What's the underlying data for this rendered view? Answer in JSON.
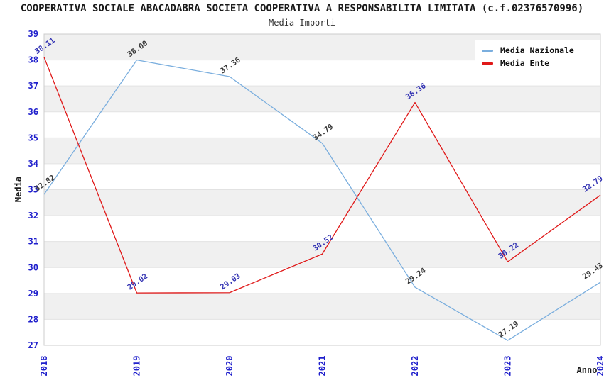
{
  "header": {
    "title": "COOPERATIVA SOCIALE ABACADABRA SOCIETA COOPERATIVA A RESPONSABILITA LIMITATA (c.f.02376570996)",
    "subtitle": "Media Importi"
  },
  "axes": {
    "y_label": "Media",
    "x_label": "Anno",
    "x_ticks": [
      "2018",
      "2019",
      "2020",
      "2021",
      "2022",
      "2023",
      "2024"
    ],
    "y_ticks": [
      27,
      28,
      29,
      30,
      31,
      32,
      33,
      34,
      35,
      36,
      37,
      38,
      39
    ],
    "tick_color": "#2020cc"
  },
  "legend": {
    "items": [
      {
        "label": "Media Nazionale",
        "color": "#7aaede"
      },
      {
        "label": "Media Ente",
        "color": "#e01818"
      }
    ]
  },
  "colors": {
    "band_fill": "#f0f0f0",
    "grid_line": "#e2e2e2",
    "plot_border": "#cccccc",
    "nazionale_line": "#7aaede",
    "ente_line": "#e01818",
    "nazionale_value_label": "#3a3a3a",
    "ente_value_label": "#3333b3"
  },
  "chart_data": {
    "type": "line",
    "title": "Media Importi",
    "xlabel": "Anno",
    "ylabel": "Media",
    "x": [
      2018,
      2019,
      2020,
      2021,
      2022,
      2023,
      2024
    ],
    "series": [
      {
        "name": "Media Nazionale",
        "color": "#7aaede",
        "label_color": "#3a3a3a",
        "values": [
          32.82,
          38.0,
          37.36,
          34.79,
          29.24,
          27.19,
          29.43
        ]
      },
      {
        "name": "Media Ente",
        "color": "#e01818",
        "label_color": "#3333b3",
        "values": [
          38.11,
          29.02,
          29.03,
          30.52,
          36.36,
          30.22,
          32.79
        ]
      }
    ],
    "ylim": [
      27,
      39
    ],
    "grid": "horizontal-bands",
    "legend_position": "top-right",
    "point_labels_visible": true,
    "point_label_rotation_deg": -35
  }
}
